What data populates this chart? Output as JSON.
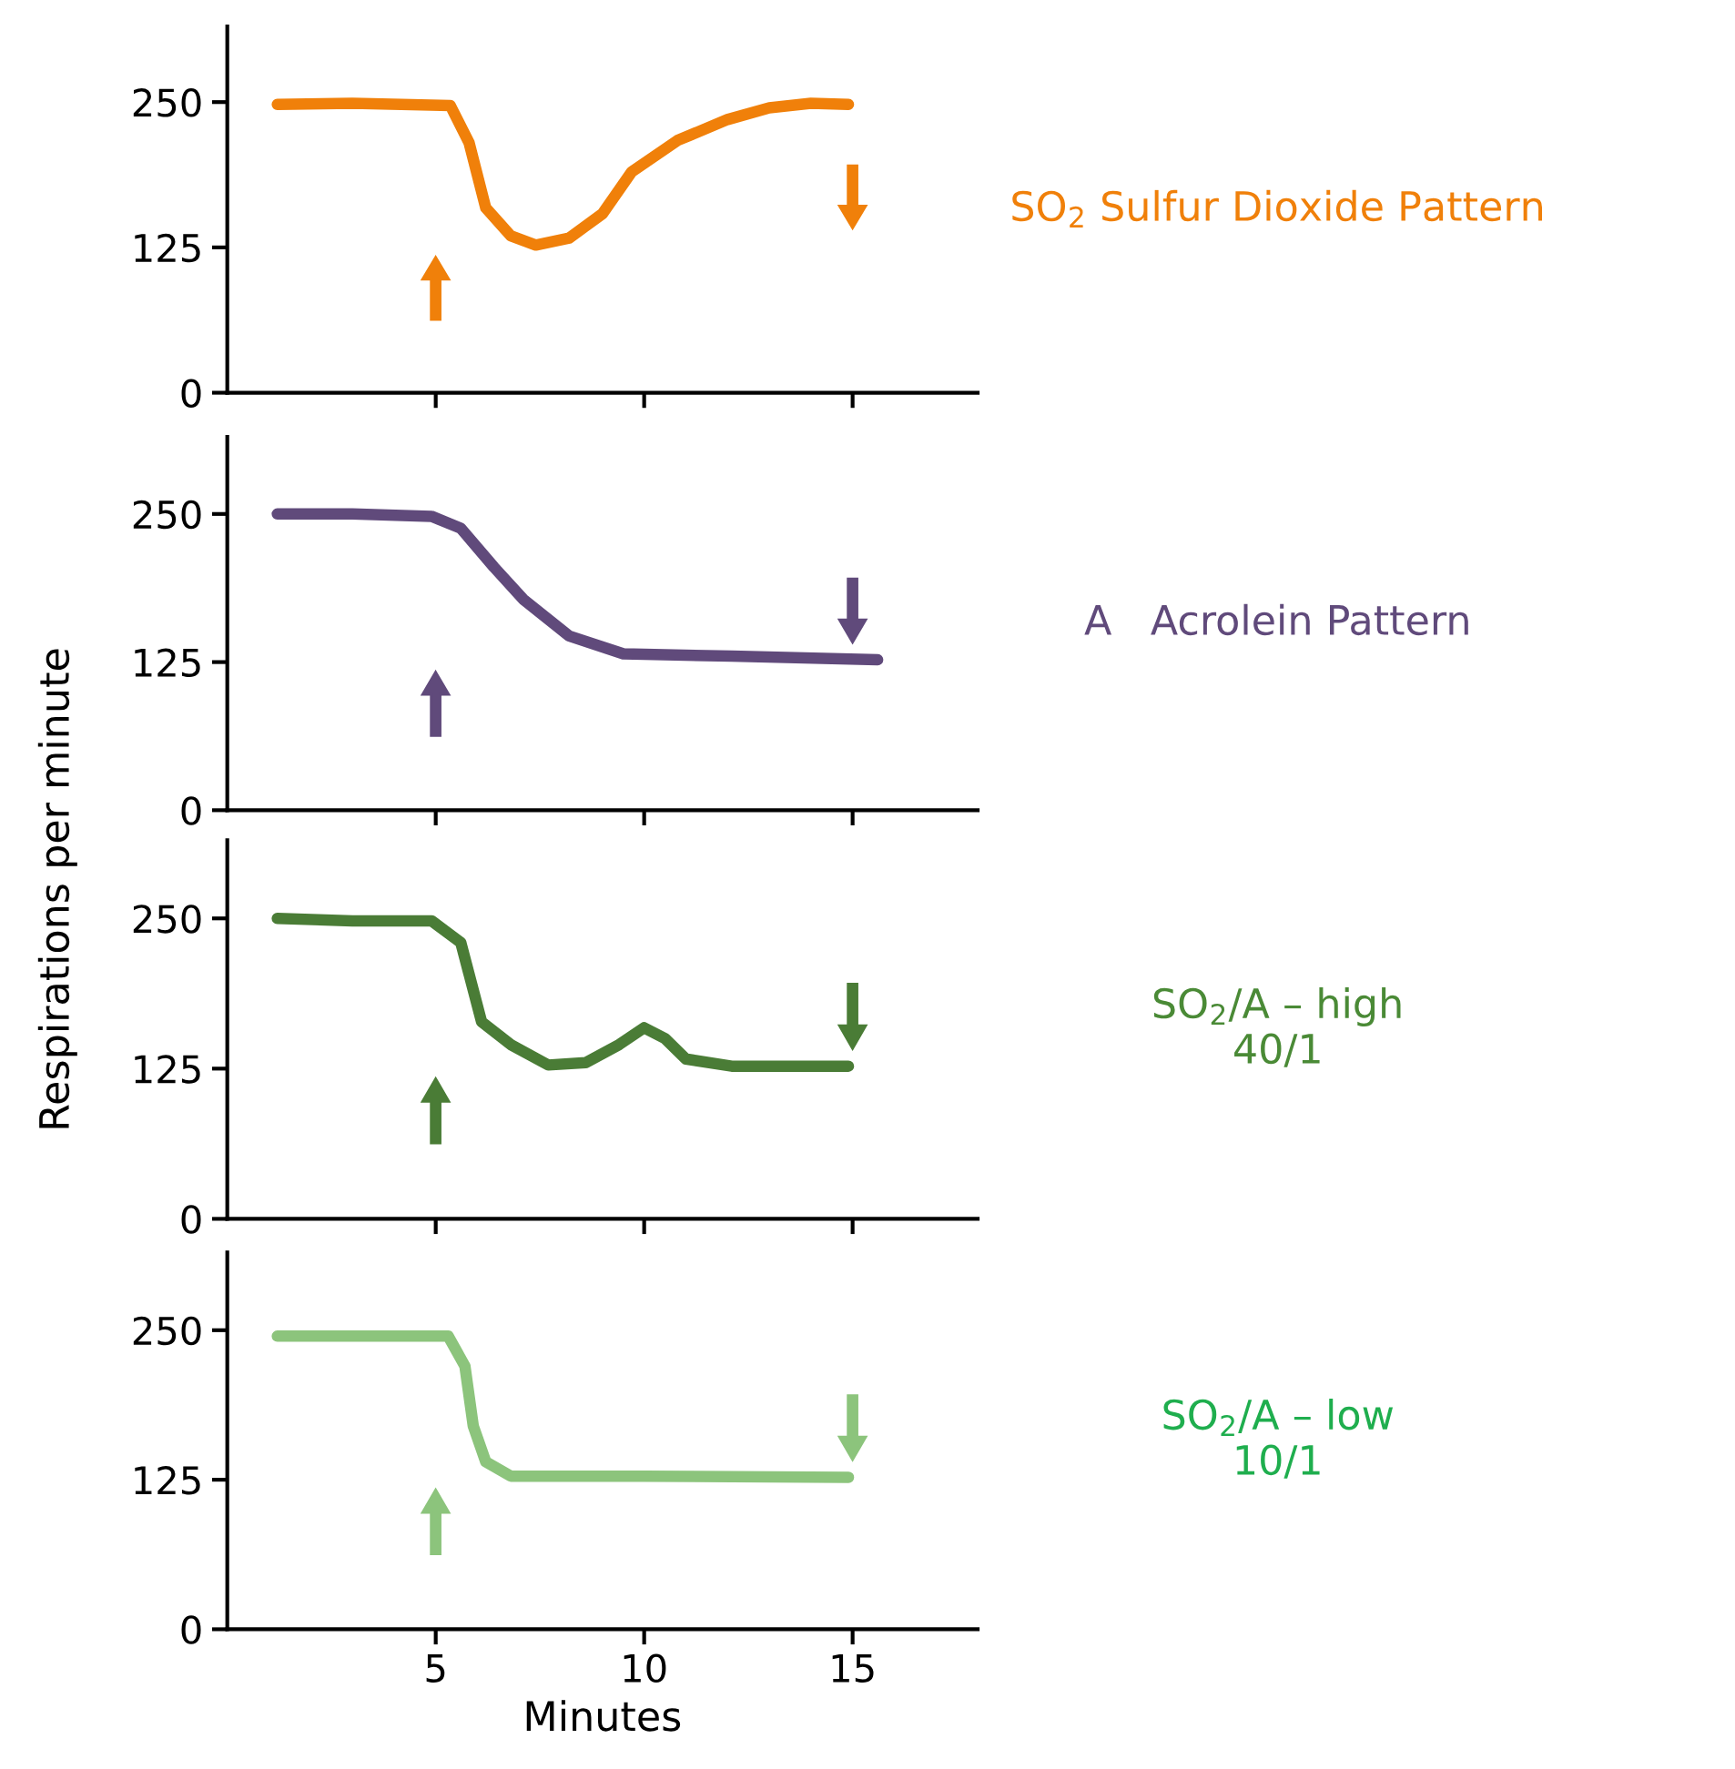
{
  "chart_data": [
    {
      "type": "line",
      "x": [
        1.2,
        3,
        5.35,
        5.8,
        6.2,
        6.8,
        7.4,
        8.2,
        9.0,
        9.7,
        10.8,
        12,
        13,
        14,
        14.9
      ],
      "series": [
        {
          "color": "#f0800a",
          "values": [
            248,
            249,
            247,
            215,
            159,
            135,
            127,
            133,
            154,
            190,
            217,
            235,
            245,
            249,
            248
          ]
        }
      ],
      "xlim": [
        0,
        18
      ],
      "xticks": [
        5,
        10,
        15
      ],
      "ylim": [
        0,
        315
      ],
      "yticks": [
        0,
        125,
        250
      ],
      "tick_labels": "y",
      "annotations": [
        "SO$_{2}$ Sulfur Dioxide Pattern"
      ]
    },
    {
      "type": "line",
      "x": [
        1.2,
        3,
        4.9,
        5.6,
        6.4,
        7.1,
        8.2,
        9.5,
        12.1,
        15.6
      ],
      "series": [
        {
          "color": "#604a7b",
          "values": [
            250,
            250,
            248,
            238,
            205,
            178,
            147,
            132,
            130,
            127
          ]
        }
      ],
      "xlim": [
        0,
        18
      ],
      "xticks": [
        5,
        10,
        15
      ],
      "ylim": [
        0,
        315
      ],
      "yticks": [
        0,
        125,
        250
      ],
      "tick_labels": "y",
      "annotations": [
        "A   Acrolein Pattern"
      ]
    },
    {
      "type": "line",
      "x": [
        1.2,
        3,
        4.9,
        5.6,
        6.1,
        6.8,
        7.7,
        8.6,
        9.4,
        10.0,
        10.5,
        11,
        12.1,
        14.9
      ],
      "series": [
        {
          "color": "#4a7c36",
          "values": [
            250,
            248,
            248,
            230,
            164,
            145,
            128,
            130,
            145,
            159,
            150,
            133,
            127,
            127
          ]
        }
      ],
      "xlim": [
        0,
        18
      ],
      "xticks": [
        5,
        10,
        15
      ],
      "ylim": [
        0,
        315
      ],
      "yticks": [
        0,
        125,
        250
      ],
      "tick_labels": "y",
      "ylabel": "Respirations per minute",
      "annotations": [
        "SO$_{2}$/A – high\n40/1"
      ]
    },
    {
      "type": "line",
      "x": [
        1.2,
        3,
        5.3,
        5.7,
        5.9,
        6.2,
        6.8,
        10,
        14.9
      ],
      "series": [
        {
          "color": "#8cc47c",
          "values": [
            245,
            245,
            245,
            220,
            170,
            140,
            128,
            128,
            127
          ]
        }
      ],
      "xlim": [
        0,
        18
      ],
      "xticks": [
        5,
        10,
        15
      ],
      "ylim": [
        0,
        315
      ],
      "yticks": [
        0,
        125,
        250
      ],
      "xlabel": "Minutes",
      "annotations": [
        "SO$_{2}$/A – low\n10/1"
      ]
    }
  ]
}
